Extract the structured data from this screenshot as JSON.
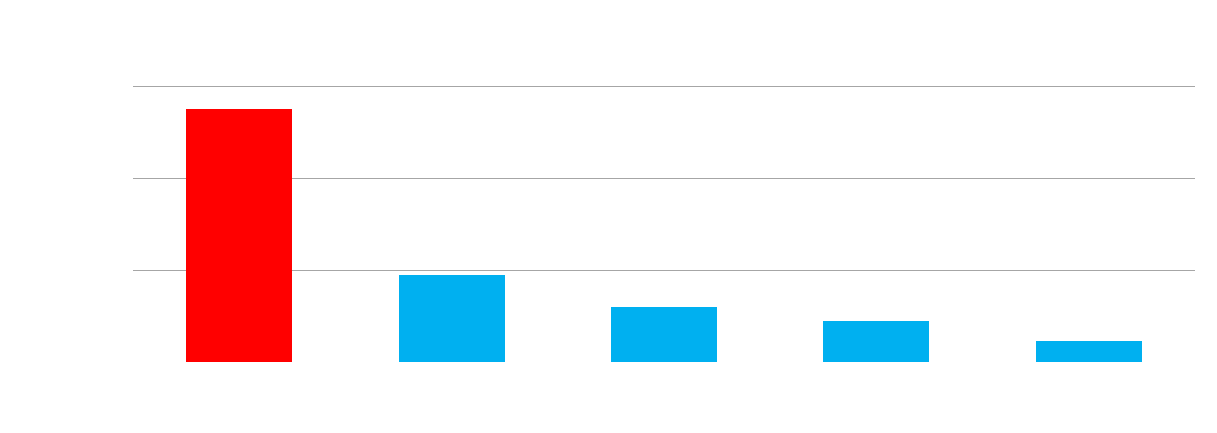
{
  "chart_data": {
    "type": "bar",
    "categories": [
      "",
      "",
      "",
      "",
      ""
    ],
    "values": [
      82.5,
      28.5,
      18,
      13.5,
      7
    ],
    "ylim": [
      0,
      90
    ],
    "grid": true,
    "gridline_values": [
      30,
      60,
      90
    ],
    "colors": {
      "highlight": "#ff0000",
      "default": "#00b0f0",
      "gridline": "#a6a6a6",
      "background": "#ffffff"
    },
    "highlight_index": 0,
    "title": "",
    "xlabel": "",
    "ylabel": "",
    "legend": "none"
  }
}
